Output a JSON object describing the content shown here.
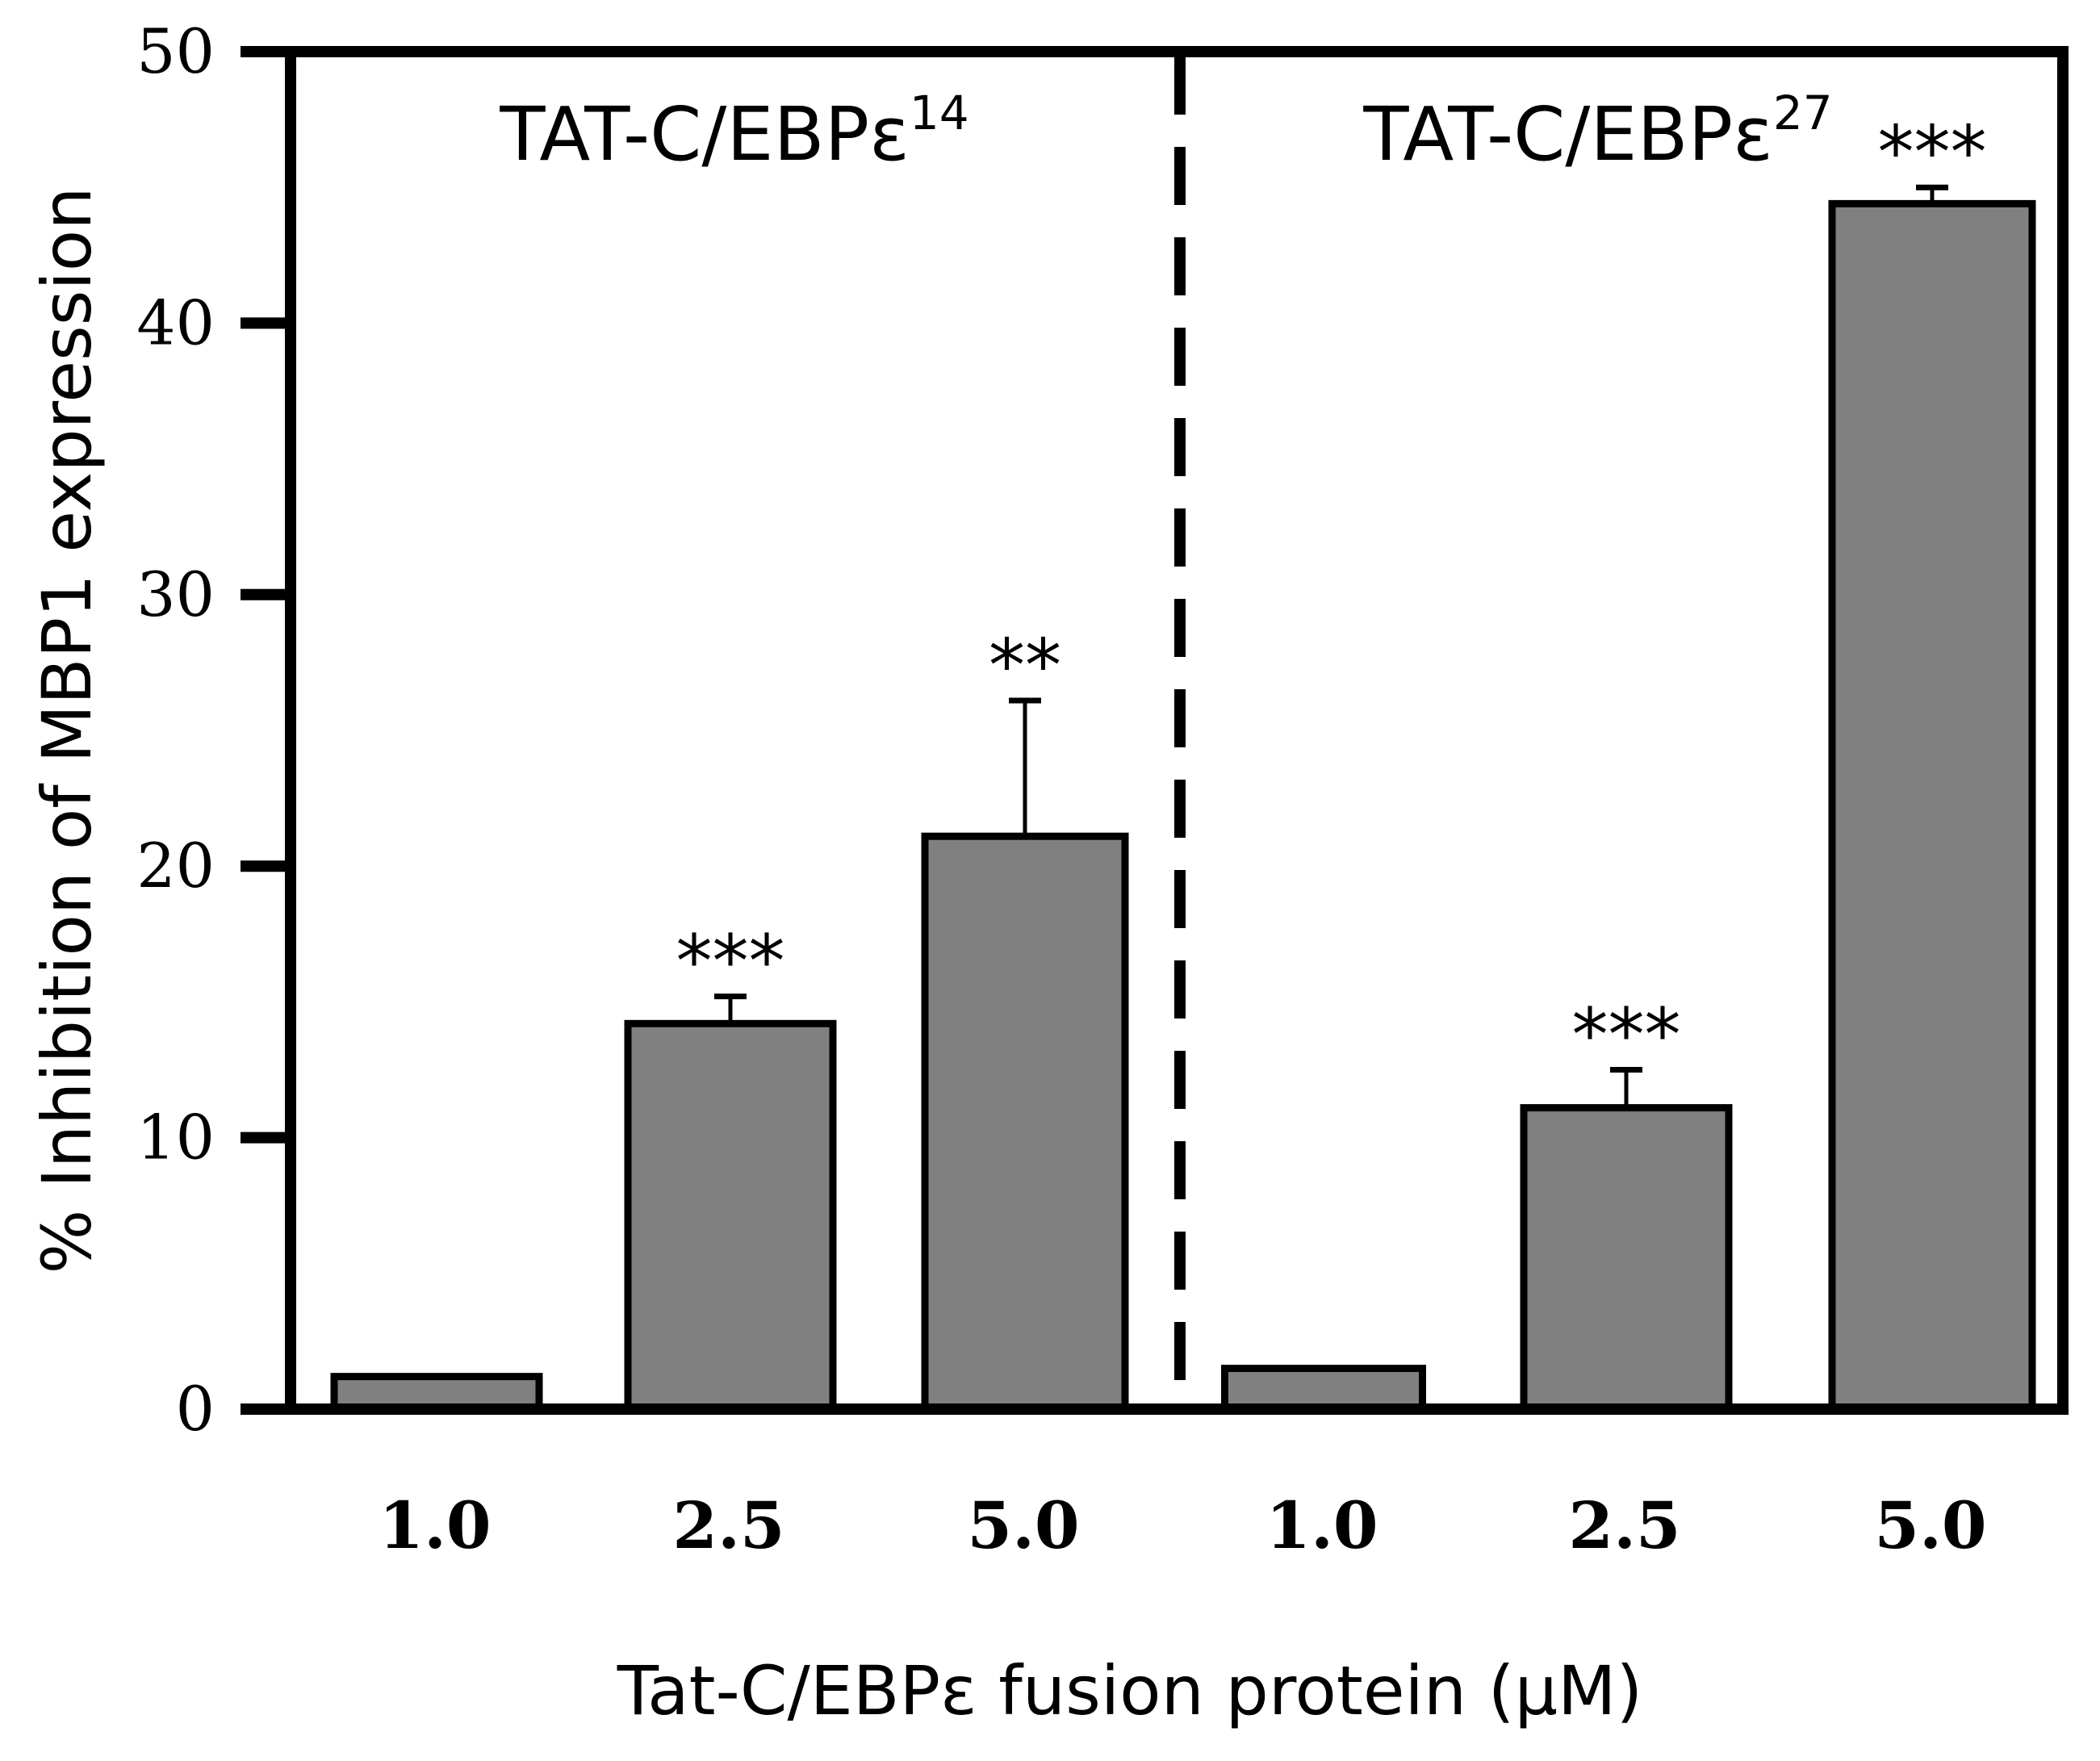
{
  "chart_data": {
    "type": "bar",
    "xlabel": "Tat-C/EBPε fusion protein (μM)",
    "ylabel": "% Inhibition of MBP1 expression",
    "ylim": [
      0,
      50
    ],
    "yticks": [
      0,
      10,
      20,
      30,
      40,
      50
    ],
    "groups": [
      {
        "label": "TAT-C/EBPε",
        "superscript": "14",
        "bars": [
          {
            "category": "1.0",
            "value": 1.2,
            "error": 0,
            "sig": ""
          },
          {
            "category": "2.5",
            "value": 14.2,
            "error": 1.0,
            "sig": "***"
          },
          {
            "category": "5.0",
            "value": 21.1,
            "error": 5.0,
            "sig": "**"
          }
        ]
      },
      {
        "label": "TAT-C/EBPε",
        "superscript": "27",
        "bars": [
          {
            "category": "1.0",
            "value": 1.5,
            "error": 0,
            "sig": ""
          },
          {
            "category": "2.5",
            "value": 11.1,
            "error": 1.4,
            "sig": "***"
          },
          {
            "category": "5.0",
            "value": 44.4,
            "error": 0.6,
            "sig": "***"
          }
        ]
      }
    ],
    "colors": {
      "bar_fill": "#808080",
      "bar_stroke": "#000000"
    },
    "divider": "dashed vertical line between groups",
    "grid": false,
    "legend": "none"
  }
}
